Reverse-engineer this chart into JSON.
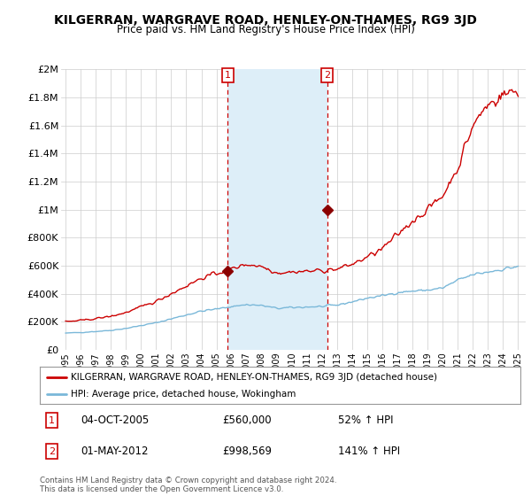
{
  "title": "KILGERRAN, WARGRAVE ROAD, HENLEY-ON-THAMES, RG9 3JD",
  "subtitle": "Price paid vs. HM Land Registry's House Price Index (HPI)",
  "legend_line1": "KILGERRAN, WARGRAVE ROAD, HENLEY-ON-THAMES, RG9 3JD (detached house)",
  "legend_line2": "HPI: Average price, detached house, Wokingham",
  "annotation1_label": "1",
  "annotation1_date": "04-OCT-2005",
  "annotation1_price": "£560,000",
  "annotation1_hpi": "52% ↑ HPI",
  "annotation2_label": "2",
  "annotation2_date": "01-MAY-2012",
  "annotation2_price": "£998,569",
  "annotation2_hpi": "141% ↑ HPI",
  "footnote": "Contains HM Land Registry data © Crown copyright and database right 2024.\nThis data is licensed under the Open Government Licence v3.0.",
  "hpi_color": "#7ab8d9",
  "price_color": "#cc0000",
  "marker_color": "#8b0000",
  "shaded_color": "#ddeef8",
  "annotation_box_color": "#cc0000",
  "background_color": "#ffffff",
  "grid_color": "#cccccc",
  "ylim": [
    0,
    2000000
  ],
  "yticks": [
    0,
    200000,
    400000,
    600000,
    800000,
    1000000,
    1200000,
    1400000,
    1600000,
    1800000,
    2000000
  ],
  "ytick_labels": [
    "£0",
    "£200K",
    "£400K",
    "£600K",
    "£800K",
    "£1M",
    "£1.2M",
    "£1.4M",
    "£1.6M",
    "£1.8M",
    "£2M"
  ],
  "sale1_x": 2005.75,
  "sale1_y": 560000,
  "sale2_x": 2012.33,
  "sale2_y": 998569,
  "shade_x1": 2005.75,
  "shade_x2": 2012.33,
  "xlim_left": 1994.7,
  "xlim_right": 2025.5,
  "xtick_years": [
    1995,
    1996,
    1997,
    1998,
    1999,
    2000,
    2001,
    2002,
    2003,
    2004,
    2005,
    2006,
    2007,
    2008,
    2009,
    2010,
    2011,
    2012,
    2013,
    2014,
    2015,
    2016,
    2017,
    2018,
    2019,
    2020,
    2021,
    2022,
    2023,
    2024,
    2025
  ]
}
